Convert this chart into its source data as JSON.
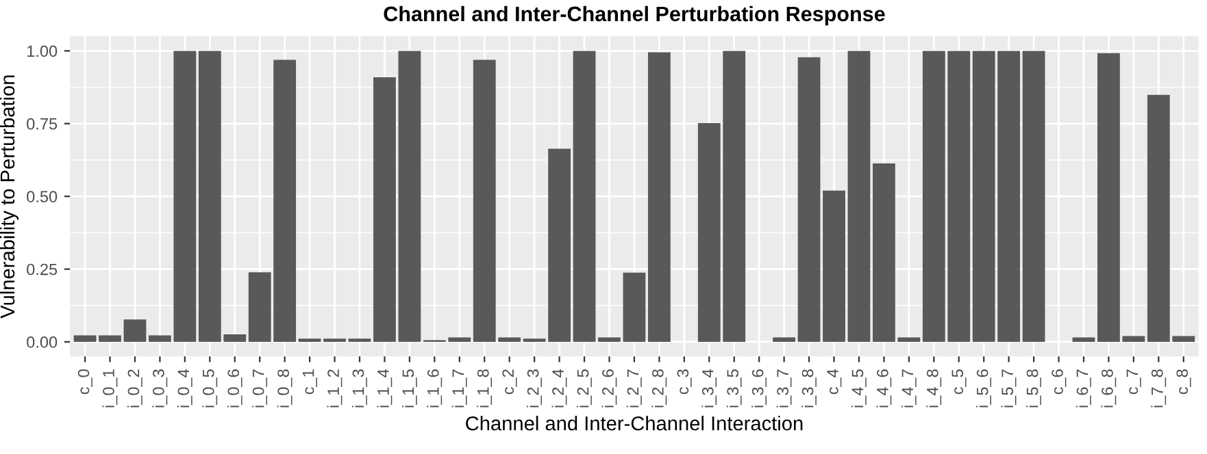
{
  "chart_data": {
    "type": "bar",
    "title": "Channel and Inter-Channel Perturbation Response",
    "xlabel": "Channel and Inter-Channel Interaction",
    "ylabel": "Vulnerability to Perturbation",
    "categories": [
      "c_0",
      "i_0_1",
      "i_0_2",
      "i_0_3",
      "i_0_4",
      "i_0_5",
      "i_0_6",
      "i_0_7",
      "i_0_8",
      "c_1",
      "i_1_2",
      "i_1_3",
      "i_1_4",
      "i_1_5",
      "i_1_6",
      "i_1_7",
      "i_1_8",
      "c_2",
      "i_2_3",
      "i_2_4",
      "i_2_5",
      "i_2_6",
      "i_2_7",
      "i_2_8",
      "c_3",
      "i_3_4",
      "i_3_5",
      "i_3_6",
      "i_3_7",
      "i_3_8",
      "c_4",
      "i_4_5",
      "i_4_6",
      "i_4_7",
      "i_4_8",
      "c_5",
      "i_5_6",
      "i_5_7",
      "i_5_8",
      "c_6",
      "i_6_7",
      "i_6_8",
      "c_7",
      "i_7_8",
      "c_8"
    ],
    "values": [
      0.022,
      0.022,
      0.077,
      0.022,
      1.0,
      1.0,
      0.026,
      0.239,
      0.969,
      0.011,
      0.011,
      0.011,
      0.909,
      1.0,
      0.006,
      0.015,
      0.969,
      0.015,
      0.011,
      0.664,
      1.0,
      0.015,
      0.238,
      0.995,
      0,
      0.752,
      1.0,
      0,
      0.015,
      0.978,
      0.52,
      1.0,
      0.613,
      0.015,
      1.0,
      1.0,
      1.0,
      1.0,
      1.0,
      0,
      0.015,
      0.992,
      0.02,
      0.849,
      0.02
    ],
    "color": "#595959",
    "ylim": [
      -0.05,
      1.05
    ],
    "yticks": [
      {
        "value": 0,
        "label": "0.00"
      },
      {
        "value": 0.25,
        "label": "0.25"
      },
      {
        "value": 0.5,
        "label": "0.50"
      },
      {
        "value": 0.75,
        "label": "0.75"
      },
      {
        "value": 1,
        "label": "1.00"
      }
    ],
    "grid": true
  }
}
